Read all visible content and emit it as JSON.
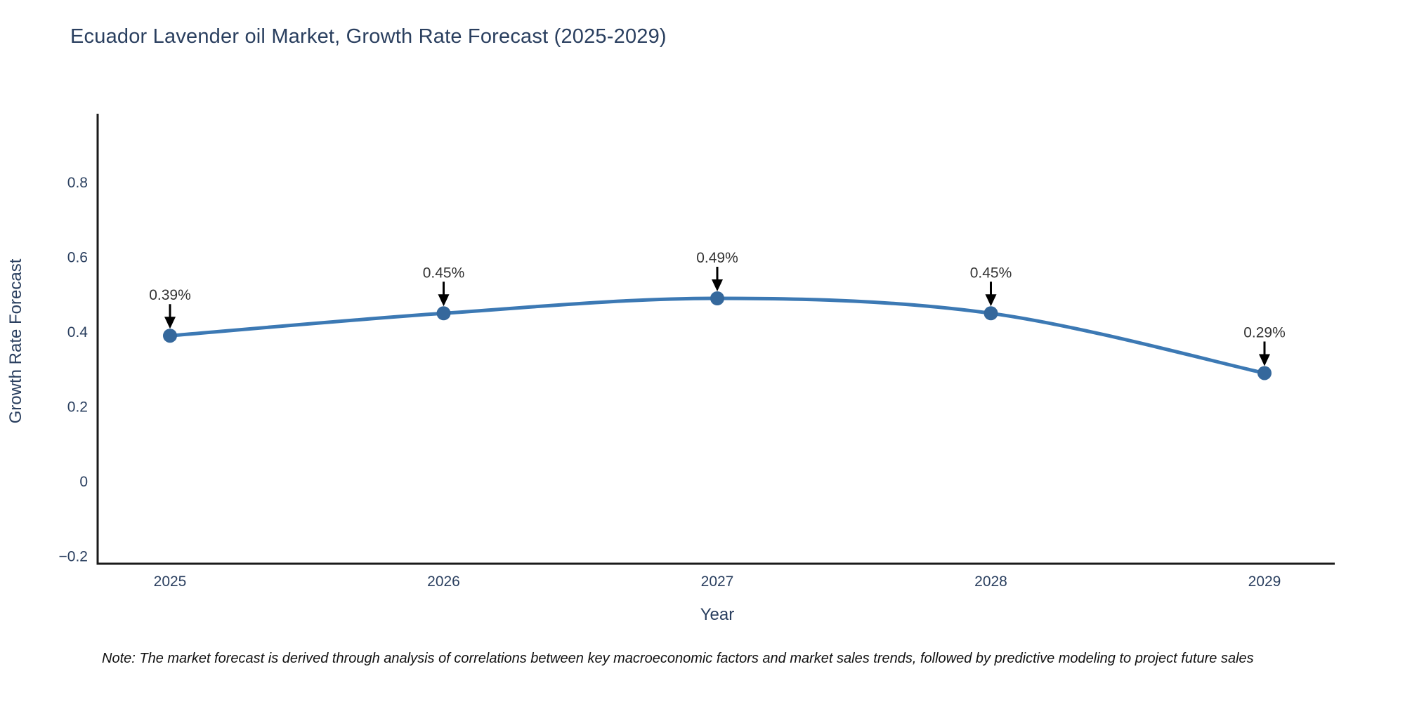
{
  "page": {
    "note": "Note: The market forecast is derived through analysis of correlations between key macroeconomic factors and market sales trends, followed by predictive modeling to project future sales"
  },
  "chart_data": {
    "type": "line",
    "title": "Ecuador Lavender oil Market, Growth Rate Forecast (2025-2029)",
    "x": [
      2025,
      2026,
      2027,
      2028,
      2029
    ],
    "values": [
      0.39,
      0.45,
      0.49,
      0.45,
      0.29
    ],
    "point_labels": [
      "0.39%",
      "0.45%",
      "0.49%",
      "0.45%",
      "0.29%"
    ],
    "xlabel": "Year",
    "ylabel": "Growth Rate Forecast",
    "yticks": [
      0.8,
      0.6,
      0.4,
      0.2,
      0,
      -0.2
    ],
    "ytick_labels": [
      "0.8",
      "0.6",
      "0.4",
      "0.2",
      "0",
      "−0.2"
    ],
    "ylim": [
      -0.22,
      0.984
    ],
    "grid": false,
    "legend": "none",
    "line_shape": "spline",
    "annotation_arrow": "down",
    "colors": {
      "line": "#3c79b4",
      "marker": "#35689c",
      "axis": "#1a1a1a",
      "tick_text": "#2a3f5f",
      "axis_title_text": "#2a3f5f",
      "title_text": "#2a3f5f",
      "annotation_text": "#333333",
      "arrow": "#000000",
      "background": "#ffffff"
    }
  }
}
